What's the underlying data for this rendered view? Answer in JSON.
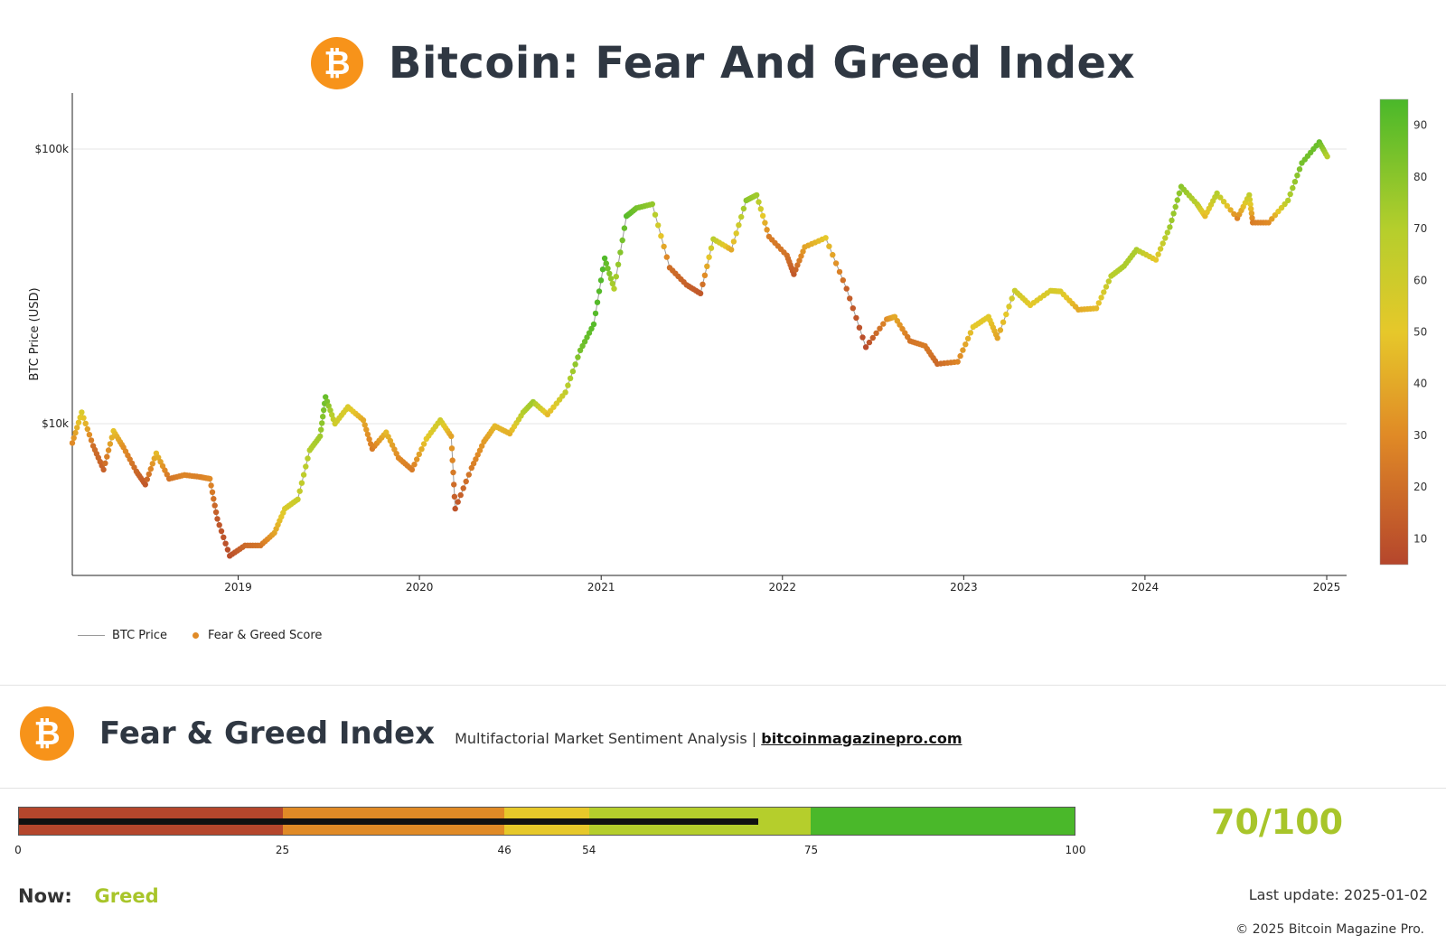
{
  "header": {
    "title": "Bitcoin: Fear And Greed Index",
    "logo_glyph": "₿",
    "logo_icon": "bitcoin-logo-icon",
    "logo_color": "#f7931a"
  },
  "chart_data": {
    "type": "scatter",
    "ylabel": "BTC Price (USD)",
    "y_scale": "log",
    "y_ticks": [
      {
        "value": 10000,
        "label": "$10k"
      },
      {
        "value": 100000,
        "label": "$100k"
      }
    ],
    "x_ticks": [
      "2019",
      "2020",
      "2021",
      "2022",
      "2023",
      "2024",
      "2025"
    ],
    "x_range": [
      "2018-02-01",
      "2025-02-10"
    ],
    "y_range": [
      2800,
      160000
    ],
    "colorbar": {
      "ticks": [
        10,
        20,
        30,
        40,
        50,
        60,
        70,
        80,
        90
      ],
      "range": [
        5,
        95
      ]
    },
    "legend_placement": "bottom-left",
    "series": [
      {
        "name": "BTC Price",
        "kind": "line",
        "color": "#9a9a9a"
      },
      {
        "name": "Fear & Greed Score",
        "kind": "points",
        "color": "#e08a26"
      }
    ],
    "points": [
      [
        "2018-02-01",
        8500,
        30
      ],
      [
        "2018-02-20",
        11000,
        55
      ],
      [
        "2018-03-15",
        8300,
        20
      ],
      [
        "2018-04-05",
        6800,
        15
      ],
      [
        "2018-04-25",
        9400,
        48
      ],
      [
        "2018-05-15",
        8200,
        32
      ],
      [
        "2018-06-10",
        6700,
        18
      ],
      [
        "2018-06-28",
        6000,
        12
      ],
      [
        "2018-07-20",
        7800,
        45
      ],
      [
        "2018-08-15",
        6300,
        22
      ],
      [
        "2018-09-15",
        6500,
        28
      ],
      [
        "2018-10-15",
        6400,
        26
      ],
      [
        "2018-11-05",
        6300,
        30
      ],
      [
        "2018-11-20",
        4500,
        12
      ],
      [
        "2018-12-15",
        3300,
        8
      ],
      [
        "2019-01-15",
        3600,
        18
      ],
      [
        "2019-02-15",
        3600,
        22
      ],
      [
        "2019-03-15",
        4000,
        38
      ],
      [
        "2019-04-05",
        4900,
        55
      ],
      [
        "2019-05-01",
        5300,
        62
      ],
      [
        "2019-05-25",
        8000,
        70
      ],
      [
        "2019-06-15",
        9000,
        75
      ],
      [
        "2019-06-26",
        12500,
        88
      ],
      [
        "2019-07-15",
        10000,
        60
      ],
      [
        "2019-08-10",
        11500,
        55
      ],
      [
        "2019-09-10",
        10300,
        40
      ],
      [
        "2019-09-28",
        8100,
        25
      ],
      [
        "2019-10-26",
        9300,
        45
      ],
      [
        "2019-11-20",
        7500,
        30
      ],
      [
        "2019-12-17",
        6800,
        25
      ],
      [
        "2020-01-15",
        8800,
        50
      ],
      [
        "2020-02-12",
        10300,
        60
      ],
      [
        "2020-03-05",
        9000,
        38
      ],
      [
        "2020-03-13",
        4900,
        10
      ],
      [
        "2020-04-15",
        6900,
        25
      ],
      [
        "2020-05-10",
        8600,
        35
      ],
      [
        "2020-06-01",
        9800,
        45
      ],
      [
        "2020-07-01",
        9200,
        42
      ],
      [
        "2020-07-28",
        11000,
        70
      ],
      [
        "2020-08-17",
        12000,
        75
      ],
      [
        "2020-09-15",
        10800,
        45
      ],
      [
        "2020-10-21",
        13000,
        65
      ],
      [
        "2020-11-20",
        18500,
        85
      ],
      [
        "2020-12-17",
        23000,
        92
      ],
      [
        "2021-01-08",
        40000,
        93
      ],
      [
        "2021-01-27",
        31000,
        70
      ],
      [
        "2021-02-21",
        57000,
        92
      ],
      [
        "2021-03-13",
        61000,
        85
      ],
      [
        "2021-04-14",
        63000,
        78
      ],
      [
        "2021-05-19",
        37000,
        20
      ],
      [
        "2021-06-22",
        32000,
        15
      ],
      [
        "2021-07-20",
        29800,
        12
      ],
      [
        "2021-08-15",
        47000,
        68
      ],
      [
        "2021-09-20",
        43000,
        40
      ],
      [
        "2021-10-20",
        65000,
        80
      ],
      [
        "2021-11-10",
        68000,
        75
      ],
      [
        "2021-12-05",
        48000,
        25
      ],
      [
        "2022-01-10",
        41000,
        22
      ],
      [
        "2022-01-24",
        35000,
        12
      ],
      [
        "2022-02-15",
        44000,
        38
      ],
      [
        "2022-03-29",
        47500,
        50
      ],
      [
        "2022-05-10",
        31000,
        15
      ],
      [
        "2022-06-18",
        19000,
        7
      ],
      [
        "2022-07-30",
        24000,
        30
      ],
      [
        "2022-08-15",
        24500,
        40
      ],
      [
        "2022-09-15",
        20000,
        22
      ],
      [
        "2022-10-15",
        19200,
        25
      ],
      [
        "2022-11-09",
        16500,
        18
      ],
      [
        "2022-12-20",
        16800,
        28
      ],
      [
        "2023-01-20",
        22500,
        50
      ],
      [
        "2023-02-20",
        24500,
        52
      ],
      [
        "2023-03-10",
        20500,
        38
      ],
      [
        "2023-04-14",
        30500,
        62
      ],
      [
        "2023-05-15",
        27000,
        50
      ],
      [
        "2023-06-25",
        30500,
        57
      ],
      [
        "2023-07-15",
        30300,
        55
      ],
      [
        "2023-08-20",
        26000,
        40
      ],
      [
        "2023-09-25",
        26300,
        45
      ],
      [
        "2023-10-25",
        34500,
        68
      ],
      [
        "2023-11-20",
        37500,
        72
      ],
      [
        "2023-12-15",
        43000,
        72
      ],
      [
        "2024-01-23",
        39500,
        50
      ],
      [
        "2024-02-20",
        52000,
        75
      ],
      [
        "2024-03-14",
        73000,
        80
      ],
      [
        "2024-04-15",
        63000,
        68
      ],
      [
        "2024-05-01",
        57000,
        45
      ],
      [
        "2024-05-25",
        69000,
        70
      ],
      [
        "2024-07-05",
        56000,
        28
      ],
      [
        "2024-07-29",
        68000,
        65
      ],
      [
        "2024-08-05",
        54000,
        25
      ],
      [
        "2024-09-06",
        54000,
        30
      ],
      [
        "2024-10-15",
        65000,
        70
      ],
      [
        "2024-11-12",
        89000,
        85
      ],
      [
        "2024-12-17",
        106000,
        88
      ],
      [
        "2025-01-02",
        94000,
        70
      ]
    ]
  },
  "legend": {
    "price_label": "BTC Price",
    "score_label": "Fear & Greed Score"
  },
  "section": {
    "title": "Fear & Greed Index",
    "subtitle": "Multifactorial Market Sentiment Analysis |",
    "link": "bitcoinmagazinepro.com"
  },
  "gauge": {
    "segments": [
      {
        "from": 0,
        "to": 25,
        "color": "#b5462c"
      },
      {
        "from": 25,
        "to": 46,
        "color": "#e08a26"
      },
      {
        "from": 46,
        "to": 54,
        "color": "#e6c82a"
      },
      {
        "from": 54,
        "to": 75,
        "color": "#b5ce2c"
      },
      {
        "from": 75,
        "to": 100,
        "color": "#4ab82a"
      }
    ],
    "tick_labels": [
      "0",
      "25",
      "46",
      "54",
      "75",
      "100"
    ],
    "value": 70,
    "score_text": "70/100"
  },
  "status": {
    "now_label": "Now:",
    "now_value": "Greed",
    "last_update": "Last update: 2025-01-02",
    "copyright": "© 2025 Bitcoin Magazine Pro."
  }
}
